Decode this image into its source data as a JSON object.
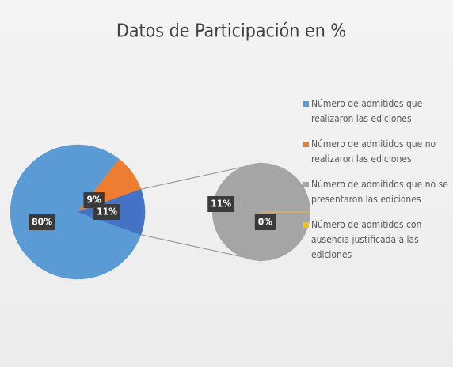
{
  "chart_data": {
    "type": "pie-of-pie",
    "title": "Datos de Participación en %",
    "categories": [
      "Número de admitidos que realizaron las ediciones",
      "Número de admitidos que no realizaron las ediciones",
      "Número de admitidos que no se presentaron las ediciones",
      "Número de admitidos con ausencia justificada a las ediciones"
    ],
    "values": [
      80,
      9,
      11,
      0
    ],
    "value_labels": [
      "80%",
      "9%",
      "11%",
      "0%"
    ],
    "colors": [
      "#5b9bd5",
      "#ed7d31",
      "#a5a5a5",
      "#ffc000"
    ],
    "secondary_count": 2,
    "other_value": 11,
    "other_label": "11%",
    "other_color": "#4472c4",
    "legend": "right"
  }
}
